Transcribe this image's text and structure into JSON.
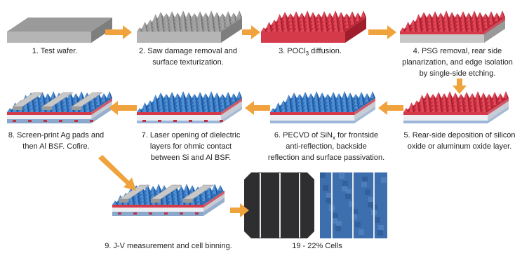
{
  "steps": [
    {
      "lines": [
        "1. Test wafer."
      ]
    },
    {
      "lines": [
        "2. Saw damage removal and",
        "surface texturization."
      ]
    },
    {
      "lines": [
        [
          "3. POCl",
          "3",
          " diffusion."
        ]
      ]
    },
    {
      "lines": [
        "4. PSG removal, rear side",
        "planarization, and edge isolation",
        "by single-side etching."
      ]
    },
    {
      "lines": [
        "5. Rear-side deposition of silicon",
        "oxide or aluminum oxide layer."
      ]
    },
    {
      "lines": [
        [
          "6. PECVD of SiN",
          "x",
          " for frontside"
        ],
        "anti-reflection, backside",
        "reflection and surface passivation."
      ]
    },
    {
      "lines": [
        "7. Laser opening of dielectric",
        "layers for ohmic contact",
        "between Si and Al BSF."
      ]
    },
    {
      "lines": [
        "8. Screen-print Ag pads and",
        "then Al BSF.  Cofire."
      ]
    },
    {
      "lines": [
        "9. J-V measurement and cell binning."
      ]
    }
  ],
  "cells_label": "19 - 22% Cells"
}
